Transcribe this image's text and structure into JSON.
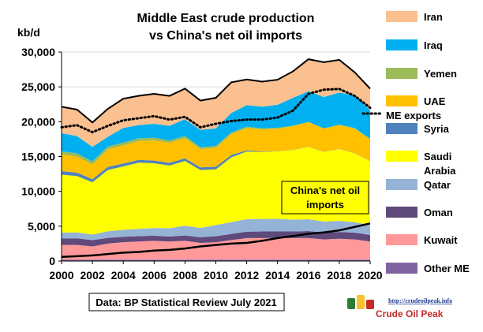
{
  "chart_data": {
    "type": "area",
    "title_line1": "Middle East crude production",
    "title_line2": "vs China's  net oil imports",
    "ylabel": "kb/d",
    "ylim": [
      0,
      30000
    ],
    "yticks": [
      0,
      5000,
      10000,
      15000,
      20000,
      25000,
      30000
    ],
    "ytick_labels": [
      "0",
      "5,000",
      "10,000",
      "15,000",
      "20,000",
      "25,000",
      "30,000"
    ],
    "xlim": [
      2000,
      2020
    ],
    "xticks": [
      2000,
      2002,
      2004,
      2006,
      2008,
      2010,
      2012,
      2014,
      2016,
      2018,
      2020
    ],
    "xtick_labels": [
      "2000",
      "2002",
      "2004",
      "2006",
      "2008",
      "2010",
      "2012",
      "2014",
      "2016",
      "2018",
      "2020"
    ],
    "x": [
      2000,
      2001,
      2002,
      2003,
      2004,
      2005,
      2006,
      2007,
      2008,
      2009,
      2010,
      2011,
      2012,
      2013,
      2014,
      2015,
      2016,
      2017,
      2018,
      2019,
      2020
    ],
    "stack_order": [
      "Other ME",
      "Kuwait",
      "Oman",
      "Qatar",
      "Saudi Arabia",
      "Syria",
      "UAE",
      "Yemen",
      "Iraq",
      "Iran"
    ],
    "series": [
      {
        "name": "Other ME",
        "color": "#8064a2",
        "values": [
          200,
          200,
          200,
          200,
          200,
          200,
          200,
          200,
          200,
          200,
          200,
          200,
          200,
          200,
          200,
          200,
          200,
          200,
          200,
          200,
          200
        ]
      },
      {
        "name": "Kuwait",
        "color": "#ff9999",
        "values": [
          2100,
          2100,
          1900,
          2300,
          2500,
          2600,
          2700,
          2600,
          2700,
          2400,
          2500,
          2800,
          3100,
          3100,
          3100,
          3100,
          3100,
          2900,
          3000,
          2900,
          2600
        ]
      },
      {
        "name": "Oman",
        "color": "#604a7b",
        "values": [
          950,
          950,
          900,
          820,
          780,
          770,
          740,
          710,
          760,
          810,
          860,
          890,
          920,
          940,
          950,
          950,
          1000,
          970,
          980,
          970,
          950
        ]
      },
      {
        "name": "Qatar",
        "color": "#95b3d7",
        "values": [
          850,
          850,
          800,
          950,
          1000,
          1050,
          1100,
          1200,
          1400,
          1350,
          1600,
          1700,
          1800,
          1800,
          1800,
          1700,
          1700,
          1600,
          1600,
          1500,
          1400
        ]
      },
      {
        "name": "Saudi Arabia",
        "color": "#ffff00",
        "values": [
          8300,
          8100,
          7500,
          8800,
          9100,
          9500,
          9300,
          9000,
          9300,
          8300,
          8000,
          9300,
          9700,
          9600,
          9700,
          10000,
          10400,
          10000,
          10300,
          9900,
          9200
        ]
      },
      {
        "name": "Syria",
        "color": "#4f81bd",
        "values": [
          500,
          500,
          450,
          450,
          420,
          400,
          380,
          370,
          380,
          380,
          380,
          330,
          170,
          60,
          30,
          30,
          30,
          30,
          30,
          30,
          30
        ]
      },
      {
        "name": "UAE",
        "color": "#ffc000",
        "values": [
          2400,
          2300,
          2100,
          2500,
          2600,
          2700,
          2900,
          2900,
          2900,
          2600,
          2700,
          3000,
          3200,
          3200,
          3200,
          3400,
          3500,
          3300,
          3400,
          3500,
          3100
        ]
      },
      {
        "name": "Yemen",
        "color": "#9bbb59",
        "values": [
          450,
          450,
          440,
          430,
          400,
          400,
          380,
          330,
          310,
          290,
          290,
          230,
          180,
          160,
          150,
          50,
          40,
          50,
          70,
          90,
          60
        ]
      },
      {
        "name": "Iraq",
        "color": "#00b0f0",
        "values": [
          2600,
          2500,
          2100,
          1400,
          2100,
          1900,
          2000,
          2100,
          2400,
          2500,
          2500,
          2800,
          3100,
          3100,
          3300,
          4000,
          4400,
          4500,
          4600,
          4700,
          4100
        ]
      },
      {
        "name": "Iran",
        "color": "#fac090",
        "values": [
          3800,
          3800,
          3500,
          4000,
          4200,
          4200,
          4300,
          4300,
          4400,
          4200,
          4400,
          4400,
          3700,
          3600,
          3600,
          3800,
          4600,
          5000,
          4700,
          3300,
          3100
        ]
      }
    ],
    "lines": [
      {
        "name": "ME exports",
        "style": "dotted",
        "color": "#000000",
        "values": [
          19200,
          19500,
          18500,
          19400,
          20200,
          20500,
          20800,
          20300,
          20700,
          19200,
          19700,
          20100,
          20300,
          20300,
          20600,
          21600,
          24000,
          24600,
          24700,
          23700,
          22000
        ]
      },
      {
        "name": "China's net oil imports",
        "style": "solid",
        "color": "#000000",
        "values": [
          600,
          700,
          800,
          1000,
          1200,
          1300,
          1500,
          1600,
          1800,
          2100,
          2300,
          2500,
          2600,
          2900,
          3300,
          3600,
          3900,
          4100,
          4400,
          4900,
          5400
        ]
      }
    ],
    "legend_entries": [
      "Iran",
      "Iraq",
      "Yemen",
      "UAE",
      "ME exports",
      "Syria",
      "Saudi",
      "Arabia",
      "Qatar",
      "Oman",
      "Kuwait",
      "Other ME"
    ],
    "annotation_china_line1": "China's net oil",
    "annotation_china_line2": "imports",
    "source_text": "Data: BP Statistical Review  July 2021"
  },
  "logo": {
    "url_text": "http://crudeoilpeak.info",
    "name": "Crude Oil Peak"
  }
}
